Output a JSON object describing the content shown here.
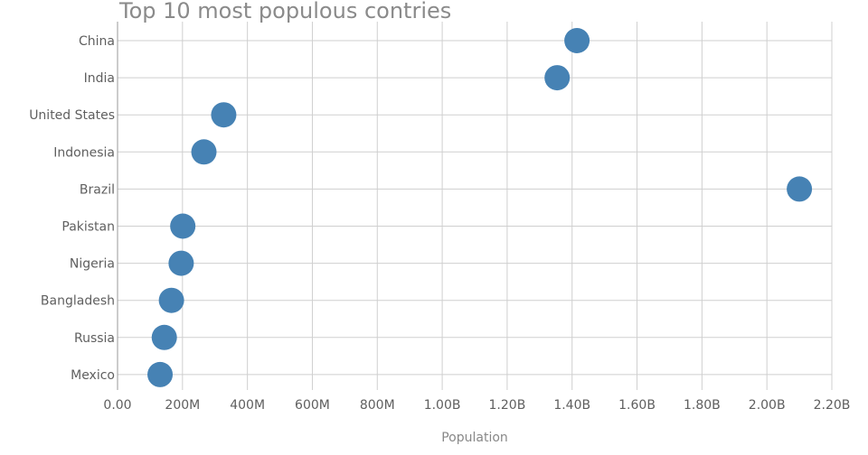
{
  "chart_data": {
    "type": "scatter",
    "title": "Top 10 most populous contries",
    "xlabel": "Population",
    "ylabel": "",
    "xlim": [
      0,
      2200000000
    ],
    "x_ticks": [
      0,
      200000000,
      400000000,
      600000000,
      800000000,
      1000000000,
      1200000000,
      1400000000,
      1600000000,
      1800000000,
      2000000000,
      2200000000
    ],
    "x_tick_labels": [
      "0.00",
      "200M",
      "400M",
      "600M",
      "800M",
      "1.00B",
      "1.20B",
      "1.40B",
      "1.60B",
      "1.80B",
      "2.00B",
      "2.20B"
    ],
    "categories": [
      "China",
      "India",
      "United States",
      "Indonesia",
      "Brazil",
      "Pakistan",
      "Nigeria",
      "Bangladesh",
      "Russia",
      "Mexico"
    ],
    "values": [
      1415000000,
      1354000000,
      327000000,
      266000000,
      2100000000,
      201000000,
      196000000,
      166000000,
      144000000,
      131000000
    ],
    "marker_color": "#4682b4",
    "grid": true
  }
}
